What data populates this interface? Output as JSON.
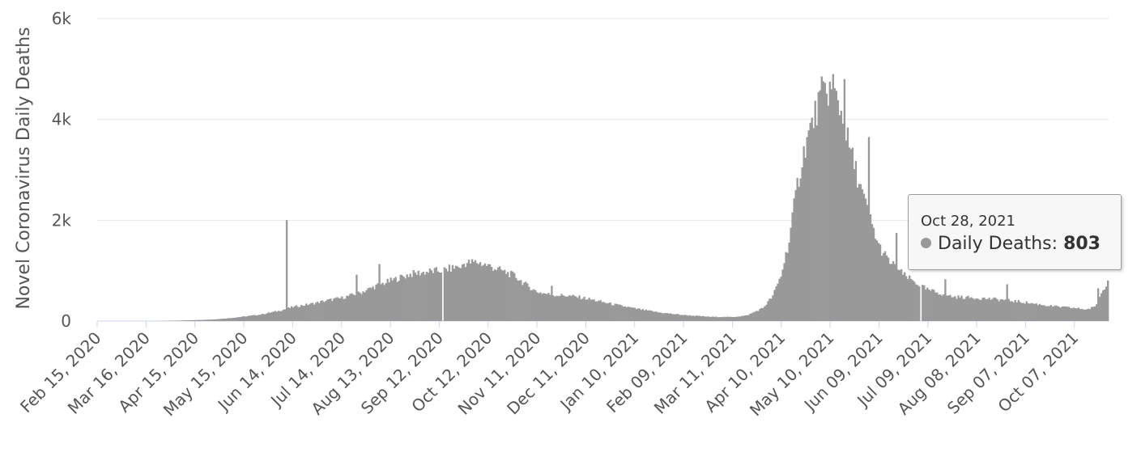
{
  "chart_data": {
    "type": "bar",
    "title": "",
    "xlabel": "",
    "ylabel": "Novel Coronavirus Daily Deaths",
    "ylim": [
      0,
      6000
    ],
    "y_ticks": [
      {
        "value": 0,
        "label": "0"
      },
      {
        "value": 2000,
        "label": "2k"
      },
      {
        "value": 4000,
        "label": "4k"
      },
      {
        "value": 6000,
        "label": "6k"
      }
    ],
    "x_ticks": [
      "Feb 15, 2020",
      "Mar 16, 2020",
      "Apr 15, 2020",
      "May 15, 2020",
      "Jun 14, 2020",
      "Jul 14, 2020",
      "Aug 13, 2020",
      "Sep 12, 2020",
      "Oct 12, 2020",
      "Nov 11, 2020",
      "Dec 11, 2020",
      "Jan 10, 2021",
      "Feb 09, 2021",
      "Mar 11, 2021",
      "Apr 10, 2021",
      "May 10, 2021",
      "Jun 09, 2021",
      "Jul 09, 2021",
      "Aug 08, 2021",
      "Sep 07, 2021",
      "Oct 07, 2021"
    ],
    "x_range": [
      "2020-02-15",
      "2021-10-28"
    ],
    "grid": true,
    "bar_color": "#999999",
    "series": [
      {
        "name": "Daily Deaths",
        "points": [
          [
            "2020-02-15",
            0
          ],
          [
            "2020-03-10",
            0
          ],
          [
            "2020-03-25",
            2
          ],
          [
            "2020-04-05",
            10
          ],
          [
            "2020-04-15",
            20
          ],
          [
            "2020-04-25",
            30
          ],
          [
            "2020-05-05",
            55
          ],
          [
            "2020-05-15",
            90
          ],
          [
            "2020-05-25",
            130
          ],
          [
            "2020-06-05",
            200
          ],
          [
            "2020-06-14",
            280
          ],
          [
            "2020-06-25",
            340
          ],
          [
            "2020-07-05",
            410
          ],
          [
            "2020-07-14",
            460
          ],
          [
            "2020-07-25",
            560
          ],
          [
            "2020-08-05",
            710
          ],
          [
            "2020-08-13",
            800
          ],
          [
            "2020-08-25",
            930
          ],
          [
            "2020-09-05",
            980
          ],
          [
            "2020-09-12",
            1000
          ],
          [
            "2020-09-20",
            1050
          ],
          [
            "2020-09-28",
            1150
          ],
          [
            "2020-10-05",
            1170
          ],
          [
            "2020-10-12",
            1100
          ],
          [
            "2020-10-20",
            1000
          ],
          [
            "2020-10-28",
            900
          ],
          [
            "2020-11-05",
            700
          ],
          [
            "2020-11-11",
            580
          ],
          [
            "2020-11-20",
            520
          ],
          [
            "2020-12-01",
            500
          ],
          [
            "2020-12-11",
            450
          ],
          [
            "2020-12-25",
            350
          ],
          [
            "2021-01-10",
            250
          ],
          [
            "2021-01-25",
            170
          ],
          [
            "2021-02-09",
            120
          ],
          [
            "2021-02-25",
            85
          ],
          [
            "2021-03-11",
            80
          ],
          [
            "2021-03-20",
            110
          ],
          [
            "2021-03-30",
            260
          ],
          [
            "2021-04-05",
            500
          ],
          [
            "2021-04-10",
            900
          ],
          [
            "2021-04-15",
            1600
          ],
          [
            "2021-04-20",
            2700
          ],
          [
            "2021-04-25",
            3500
          ],
          [
            "2021-05-01",
            4100
          ],
          [
            "2021-05-05",
            4500
          ],
          [
            "2021-05-10",
            4600
          ],
          [
            "2021-05-15",
            4400
          ],
          [
            "2021-05-20",
            3700
          ],
          [
            "2021-05-25",
            3100
          ],
          [
            "2021-06-01",
            2300
          ],
          [
            "2021-06-09",
            1500
          ],
          [
            "2021-06-15",
            1200
          ],
          [
            "2021-06-25",
            900
          ],
          [
            "2021-07-09",
            620
          ],
          [
            "2021-07-25",
            480
          ],
          [
            "2021-08-08",
            460
          ],
          [
            "2021-08-25",
            420
          ],
          [
            "2021-09-07",
            370
          ],
          [
            "2021-09-25",
            290
          ],
          [
            "2021-10-07",
            260
          ],
          [
            "2021-10-15",
            230
          ],
          [
            "2021-10-20",
            280
          ],
          [
            "2021-10-24",
            550
          ],
          [
            "2021-10-28",
            803
          ]
        ],
        "spikes": [
          [
            "2020-06-10",
            2003
          ],
          [
            "2020-07-23",
            920
          ],
          [
            "2020-08-06",
            1130
          ],
          [
            "2020-09-25",
            1050
          ],
          [
            "2020-10-20",
            1020
          ],
          [
            "2020-11-20",
            700
          ],
          [
            "2021-05-12",
            4900
          ],
          [
            "2021-05-19",
            4800
          ],
          [
            "2021-06-03",
            3650
          ],
          [
            "2021-06-20",
            1750
          ],
          [
            "2021-07-20",
            830
          ],
          [
            "2021-08-27",
            730
          ],
          [
            "2021-10-22",
            650
          ]
        ],
        "gaps": [
          "2020-09-14",
          "2021-07-05"
        ]
      }
    ]
  },
  "tooltip": {
    "date": "Oct 28, 2021",
    "series_label": "Daily Deaths:",
    "value": "803"
  }
}
